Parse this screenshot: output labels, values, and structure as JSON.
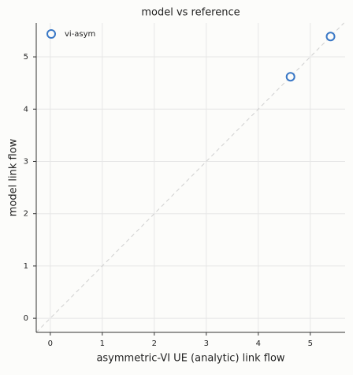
{
  "chart_data": {
    "type": "scatter",
    "title": "model vs reference",
    "x_label": "asymmetric-VI UE (analytic) link flow",
    "y_label": "model link flow",
    "series": [
      {
        "name": "vi-asym",
        "color": "#3a78c6",
        "x": [
          4.62,
          5.39
        ],
        "values": [
          4.62,
          5.39
        ]
      }
    ],
    "xlim": [
      -0.27,
      5.67
    ],
    "ylim": [
      -0.27,
      5.65
    ],
    "xticks": [
      0,
      1,
      2,
      3,
      4,
      5
    ],
    "yticks": [
      0,
      1,
      2,
      3,
      4,
      5
    ],
    "grid": true,
    "legend": "upper left"
  }
}
